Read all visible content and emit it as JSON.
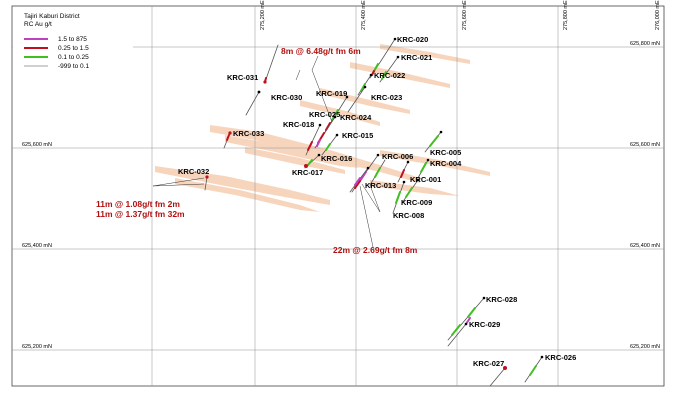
{
  "legend": {
    "title": "Tajiri Kaburi District",
    "subtitle": "RC Au g/t",
    "items": [
      {
        "label": "1.5  to 875",
        "color": "#c040c0"
      },
      {
        "label": "0.25 to    1.5",
        "color": "#c01020"
      },
      {
        "label": "0.1   to   0.25",
        "color": "#40c020"
      },
      {
        "label": "-999  to   0.1",
        "color": "#a0a0a0"
      }
    ]
  },
  "easting_labels": [
    "275,200 mE",
    "275,400 mE",
    "275,600 mE",
    "275,800 mE",
    "276,000 mE"
  ],
  "northing_labels": [
    "625,800 mN",
    "625,600 mN",
    "625,400 mN",
    "625,200 mN"
  ],
  "northing_labels_left": [
    "625,600 mN",
    "625,400 mN",
    "625,200 mN"
  ],
  "holes": [
    "KRC-020",
    "KRC-021",
    "KRC-022",
    "KRC-023",
    "KRC-031",
    "KRC-030",
    "KRC-019",
    "KRC-025",
    "KRC-024",
    "KRC-018",
    "KRC-033",
    "KRC-015",
    "KRC-016",
    "KRC-017",
    "KRC-006",
    "KRC-005",
    "KRC-004",
    "KRC-013",
    "KRC-001",
    "KRC-009",
    "KRC-008",
    "KRC-032",
    "KRC-028",
    "KRC-029",
    "KRC-027",
    "KRC-026"
  ],
  "annotations": [
    "8m @ 6.48g/t fm 6m",
    "11m @ 1.08g/t fm 2m",
    "11m @ 1.37g/t fm 32m",
    "22m @ 2.69g/t fm 8m"
  ],
  "colors": {
    "ore_body": "#f5c8a8",
    "grid": "#909090",
    "annotation": "#b01010"
  }
}
